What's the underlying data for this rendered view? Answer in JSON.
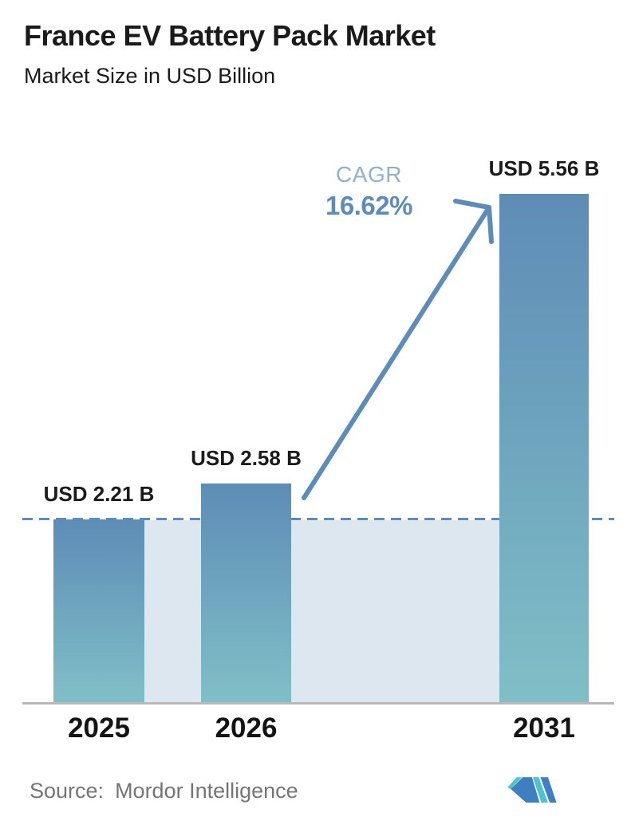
{
  "header": {
    "title": "France EV Battery Pack Market",
    "subtitle": "Market Size in USD Billion"
  },
  "cagr": {
    "label": "CAGR",
    "value": "16.62%"
  },
  "footer": {
    "source_label": "Source:",
    "source_name": "Mordor Intelligence",
    "logo": "mordor-intelligence-logo"
  },
  "colors": {
    "text": "#1A1A1A",
    "bar_top": "#5E8CB6",
    "bar_bottom": "#80BFC7",
    "band": "#DCE7EF",
    "accent_blue": "#5D8CB8",
    "cagr_label": "#90B0CC",
    "axis_line": "#B9B9B9",
    "source_text": "#757575",
    "logo_blue": "#3E7EC1",
    "logo_teal": "#4FC2CF"
  },
  "chart_data": {
    "type": "bar",
    "title": "France EV Battery Pack Market",
    "subtitle": "Market Size in USD Billion",
    "unit": "USD Billion",
    "categories": [
      "2025",
      "2026",
      "2031"
    ],
    "values": [
      2.21,
      2.58,
      5.56
    ],
    "value_labels": [
      "USD 2.21 B",
      "USD 2.58 B",
      "USD 5.56 B"
    ],
    "cagr_percent": 16.62,
    "reference_line": {
      "style": "dashed",
      "at_value": 2.21,
      "shaded_below": true
    },
    "arrow": {
      "from_category": "2026",
      "to_category": "2031"
    },
    "xlabel": "",
    "ylabel": "Market Size in USD Billion",
    "ylim": [
      0,
      6
    ],
    "gridlines": false,
    "legend": "none"
  }
}
